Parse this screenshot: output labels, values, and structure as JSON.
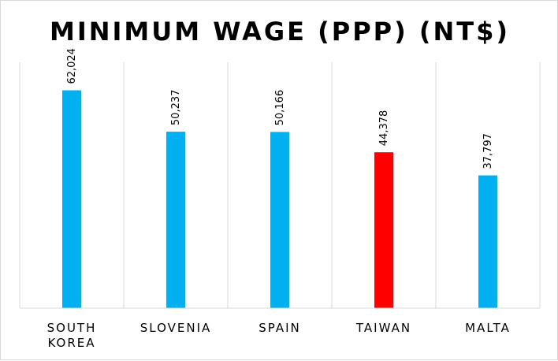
{
  "chart_data": {
    "type": "bar",
    "title": "MINIMUM WAGE (PPP) (NT$)",
    "categories": [
      "SOUTH KOREA",
      "SLOVENIA",
      "SPAIN",
      "TAIWAN",
      "MALTA"
    ],
    "category_lines": [
      [
        "SOUTH",
        "KOREA"
      ],
      [
        "SLOVENIA"
      ],
      [
        "SPAIN"
      ],
      [
        "TAIWAN"
      ],
      [
        "MALTA"
      ]
    ],
    "values": [
      62024,
      50237,
      50166,
      44378,
      37797
    ],
    "value_labels": [
      "62,024",
      "50,237",
      "50,166",
      "44,378",
      "37,797"
    ],
    "bar_colors": [
      "#00B0F0",
      "#00B0F0",
      "#00B0F0",
      "#FF0000",
      "#00B0F0"
    ],
    "highlight_color": "#FF0000",
    "base_color": "#00B0F0",
    "ylim": [
      0,
      70000
    ],
    "grid": "vertical separators",
    "legend": "none",
    "xlabel": "",
    "ylabel": ""
  }
}
